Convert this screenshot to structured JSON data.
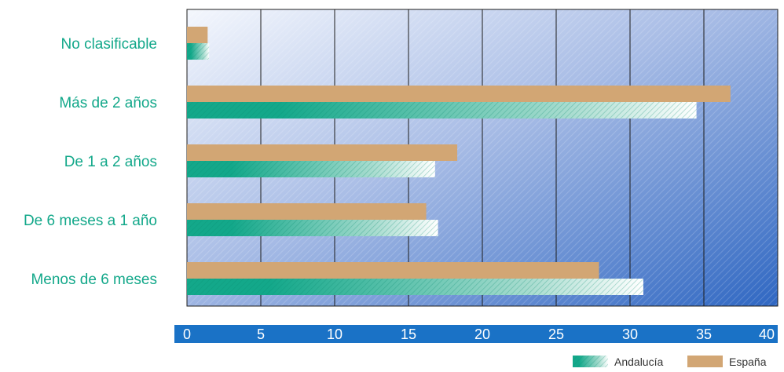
{
  "chart_data": {
    "type": "bar",
    "orientation": "horizontal",
    "categories": [
      "No clasificable",
      "Más de 2 años",
      "De 1 a 2 años",
      "De 6 meses a 1 año",
      "Menos de 6 meses"
    ],
    "series": [
      {
        "name": "España",
        "values": [
          1.4,
          36.8,
          18.3,
          16.2,
          27.9
        ],
        "color": "#d2a674"
      },
      {
        "name": "Andalucía",
        "values": [
          1.5,
          34.5,
          16.8,
          17.0,
          30.9
        ],
        "color": "#13a88a"
      }
    ],
    "xlim": [
      0,
      40
    ],
    "xticks": [
      "0",
      "5",
      "10",
      "15",
      "20",
      "25",
      "30",
      "35",
      "40"
    ],
    "grid": true,
    "legend": "bottom-right",
    "colors": {
      "plot_background": "#3a72c8",
      "axis_band": "#1a72c6",
      "category_text": "#13a88a"
    }
  }
}
